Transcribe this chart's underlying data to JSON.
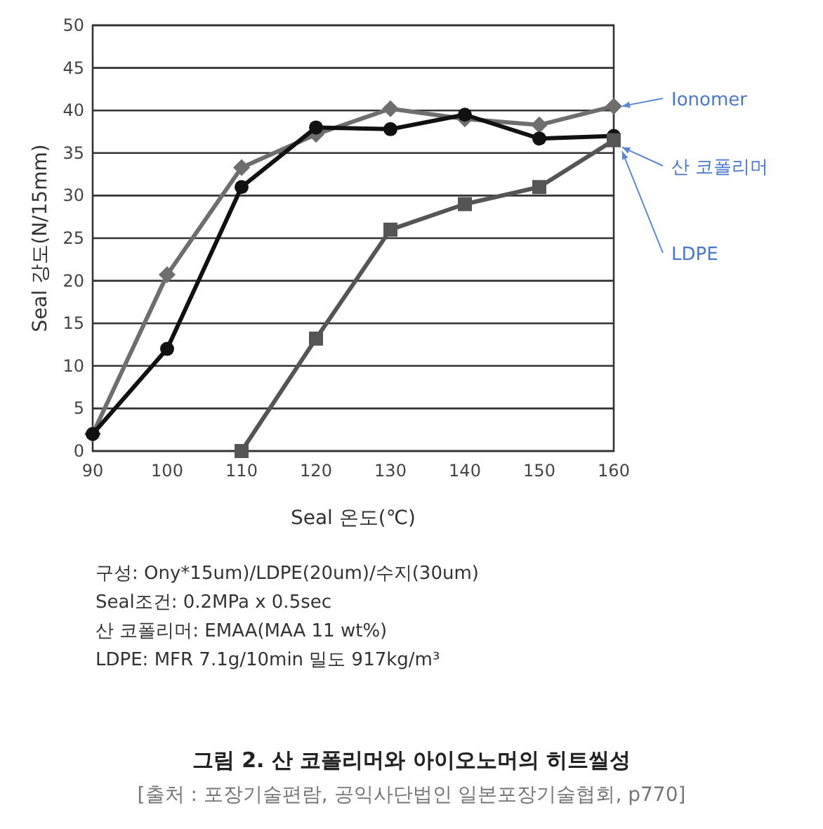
{
  "chart_data": {
    "type": "line",
    "xlabel": "Seal 온도(℃)",
    "ylabel": "Seal 강도(N/15mm)",
    "x": [
      90,
      100,
      110,
      120,
      130,
      140,
      150,
      160
    ],
    "series": [
      {
        "name": "Ionomer",
        "color": "#6e6e6e",
        "marker": "diamond",
        "values": [
          2,
          20.7,
          33.3,
          37.2,
          40.2,
          39,
          38.3,
          40.5
        ]
      },
      {
        "name": "산 코폴리머",
        "color": "#111111",
        "marker": "circle",
        "values": [
          2,
          12,
          31,
          38,
          37.8,
          39.5,
          36.7,
          37
        ]
      },
      {
        "name": "LDPE",
        "color": "#555555",
        "marker": "square",
        "x": [
          110,
          120,
          130,
          140,
          150,
          160
        ],
        "values": [
          0,
          13.2,
          26,
          29,
          31,
          36.5
        ]
      }
    ],
    "xlim": [
      90,
      160
    ],
    "xticks": [
      90,
      100,
      110,
      120,
      130,
      140,
      150,
      160
    ],
    "ylim": [
      0,
      50
    ],
    "yticks": [
      0,
      5,
      10,
      15,
      20,
      25,
      30,
      35,
      40,
      45,
      50
    ],
    "grid": "y",
    "title": "그림 2. 산 코폴리머와 아이오노머의 히트씰성",
    "annotations": [
      "구성: Ony*15um)/LDPE(20um)/수지(30um)",
      "Seal조건: 0.2MPa  x 0.5sec",
      "산 코폴리머: EMAA(MAA 11 wt%)",
      "LDPE: MFR 7.1g/10min 밀도 917kg/m³",
      "[출처 : 포장기술편람, 공익사단법인 일본포장기술협회, p770]"
    ]
  }
}
